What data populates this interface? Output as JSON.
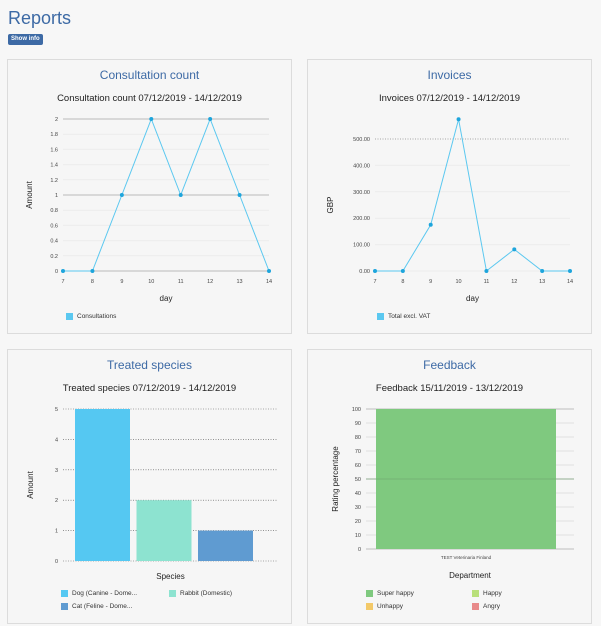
{
  "header": {
    "title": "Reports",
    "show_info_label": "Show info"
  },
  "panels": {
    "consultation": {
      "panel_title": "Consultation count",
      "chart_title": "Consultation count 07/12/2019 - 14/12/2019",
      "legend": [
        "Consultations"
      ]
    },
    "invoices": {
      "panel_title": "Invoices",
      "chart_title": "Invoices 07/12/2019 - 14/12/2019",
      "legend": [
        "Total excl. VAT"
      ]
    },
    "species": {
      "panel_title": "Treated species",
      "chart_title": "Treated species 07/12/2019 - 14/12/2019",
      "legend": [
        "Dog (Canine - Dome...",
        "Rabbit (Domestic)",
        "Cat (Feline - Dome..."
      ]
    },
    "feedback": {
      "panel_title": "Feedback",
      "chart_title": "Feedback 15/11/2019 - 13/12/2019",
      "legend": [
        "Super happy",
        "Happy",
        "Unhappy",
        "Angry"
      ]
    }
  },
  "colors": {
    "line": "#5bc8f0",
    "dog": "#55c8f2",
    "rabbit": "#8de3d0",
    "cat": "#5f9bd1",
    "super_happy": "#7fc97f",
    "happy": "#b9e07a",
    "unhappy": "#f3c969",
    "angry": "#e88a8a",
    "accent": "#3d6aa5"
  },
  "chart_data": [
    {
      "type": "line",
      "title": "Consultation count 07/12/2019 - 14/12/2019",
      "xlabel": "day",
      "ylabel": "Amount",
      "x": [
        7,
        8,
        9,
        10,
        11,
        12,
        13,
        14
      ],
      "x_ticks": [
        "7",
        "8",
        "9",
        "10",
        "11",
        "12",
        "13",
        "14"
      ],
      "y_ticks": [
        "0",
        "0.2",
        "0.4",
        "0.6",
        "0.8",
        "1",
        "1.2",
        "1.4",
        "1.6",
        "1.8",
        "2"
      ],
      "ylim": [
        0,
        2
      ],
      "series": [
        {
          "name": "Consultations",
          "values": [
            0,
            0,
            1,
            2,
            1,
            2,
            1,
            0
          ]
        }
      ]
    },
    {
      "type": "line",
      "title": "Invoices 07/12/2019 - 14/12/2019",
      "xlabel": "day",
      "ylabel": "GBP",
      "x": [
        7,
        8,
        9,
        10,
        11,
        12,
        13,
        14
      ],
      "x_ticks": [
        "7",
        "8",
        "9",
        "10",
        "11",
        "12",
        "13",
        "14"
      ],
      "y_ticks": [
        "0.00",
        "100.00",
        "200.00",
        "300.00",
        "400.00",
        "500.00"
      ],
      "ylim": [
        0,
        500
      ],
      "series": [
        {
          "name": "Total excl. VAT",
          "values": [
            0,
            0,
            175,
            575,
            0,
            82,
            0,
            0
          ]
        }
      ]
    },
    {
      "type": "bar",
      "title": "Treated species 07/12/2019 - 14/12/2019",
      "xlabel": "Species",
      "ylabel": "Amount",
      "categories": [
        "Dog (Canine - Dome...",
        "Rabbit (Domestic)",
        "Cat (Feline - Dome..."
      ],
      "values": [
        5,
        2,
        1
      ],
      "y_ticks": [
        "0",
        "1",
        "2",
        "3",
        "4",
        "5"
      ],
      "ylim": [
        0,
        5
      ]
    },
    {
      "type": "bar",
      "title": "Feedback 15/11/2019 - 13/12/2019",
      "xlabel": "Department",
      "ylabel": "Rating percentage",
      "categories": [
        "TEST Veterinaria Finland"
      ],
      "series": [
        {
          "name": "Super happy",
          "values": [
            100
          ]
        },
        {
          "name": "Happy",
          "values": [
            0
          ]
        },
        {
          "name": "Unhappy",
          "values": [
            0
          ]
        },
        {
          "name": "Angry",
          "values": [
            0
          ]
        }
      ],
      "y_ticks": [
        "0",
        "10",
        "20",
        "30",
        "40",
        "50",
        "60",
        "70",
        "80",
        "90",
        "100"
      ],
      "ylim": [
        0,
        100
      ]
    }
  ]
}
